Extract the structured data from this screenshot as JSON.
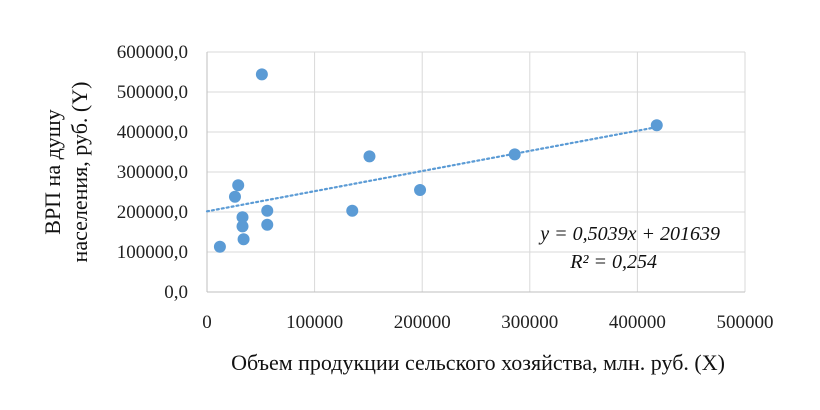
{
  "chart_data": {
    "type": "scatter",
    "xlabel": "Объем продукции сельского хозяйства, млн. руб. (X)",
    "ylabel_lines": [
      "ВРП на душу",
      "населения, руб. (Y)"
    ],
    "xlim": [
      0,
      500000
    ],
    "ylim": [
      0,
      600000
    ],
    "x_ticks": [
      "0",
      "100000",
      "200000",
      "300000",
      "400000",
      "500000"
    ],
    "y_ticks": [
      "0,0",
      "100000,0",
      "200000,0",
      "300000,0",
      "400000,0",
      "500000,0",
      "600000,0"
    ],
    "x_tick_values": [
      0,
      100000,
      200000,
      300000,
      400000,
      500000
    ],
    "y_tick_values": [
      0,
      100000,
      200000,
      300000,
      400000,
      500000,
      600000
    ],
    "grid": true,
    "point_color": "#5b9bd5",
    "trendline_color": "#5b9bd5",
    "points": [
      {
        "x": 12000,
        "y": 113000
      },
      {
        "x": 26000,
        "y": 238000
      },
      {
        "x": 29000,
        "y": 267000
      },
      {
        "x": 33000,
        "y": 187000
      },
      {
        "x": 33000,
        "y": 164000
      },
      {
        "x": 34000,
        "y": 132000
      },
      {
        "x": 51000,
        "y": 544000
      },
      {
        "x": 56000,
        "y": 203000
      },
      {
        "x": 56000,
        "y": 168000
      },
      {
        "x": 135000,
        "y": 203000
      },
      {
        "x": 151000,
        "y": 339000
      },
      {
        "x": 198000,
        "y": 255000
      },
      {
        "x": 286000,
        "y": 344000
      },
      {
        "x": 418000,
        "y": 417000
      }
    ],
    "trendline": {
      "slope": 0.5039,
      "intercept": 201639,
      "x_range": [
        0,
        418000
      ]
    },
    "equation_text": "y = 0,5039x + 201639",
    "r2_text": "R² = 0,254"
  }
}
